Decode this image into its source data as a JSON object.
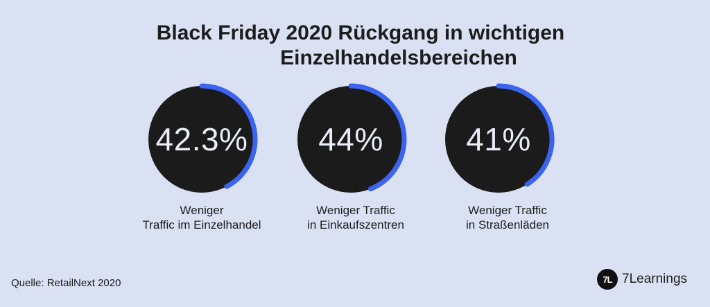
{
  "title": {
    "line1": "Black Friday 2020 Rückgang in wichtigen",
    "line2": "Einzelhandelsbereichen"
  },
  "chart_data": {
    "type": "donut",
    "items": [
      {
        "value": 42.3,
        "value_text": "42.3%",
        "label_line1": "Weniger",
        "label_line2": "Traffic im Einzelhandel"
      },
      {
        "value": 44,
        "value_text": "44%",
        "label_line1": "Weniger Traffic",
        "label_line2": "in Einkaufszentren"
      },
      {
        "value": 41,
        "value_text": "41%",
        "label_line1": "Weniger Traffic",
        "label_line2": "in Straßenläden"
      }
    ]
  },
  "colors": {
    "ring": "#3a63f0",
    "disc": "#1b1b1b",
    "background": "#d9e1f3"
  },
  "source": "Quelle: RetailNext 2020",
  "brand": {
    "logo_text": "7L",
    "name": "7Learnings",
    "icon": "7learnings-logo-icon"
  }
}
